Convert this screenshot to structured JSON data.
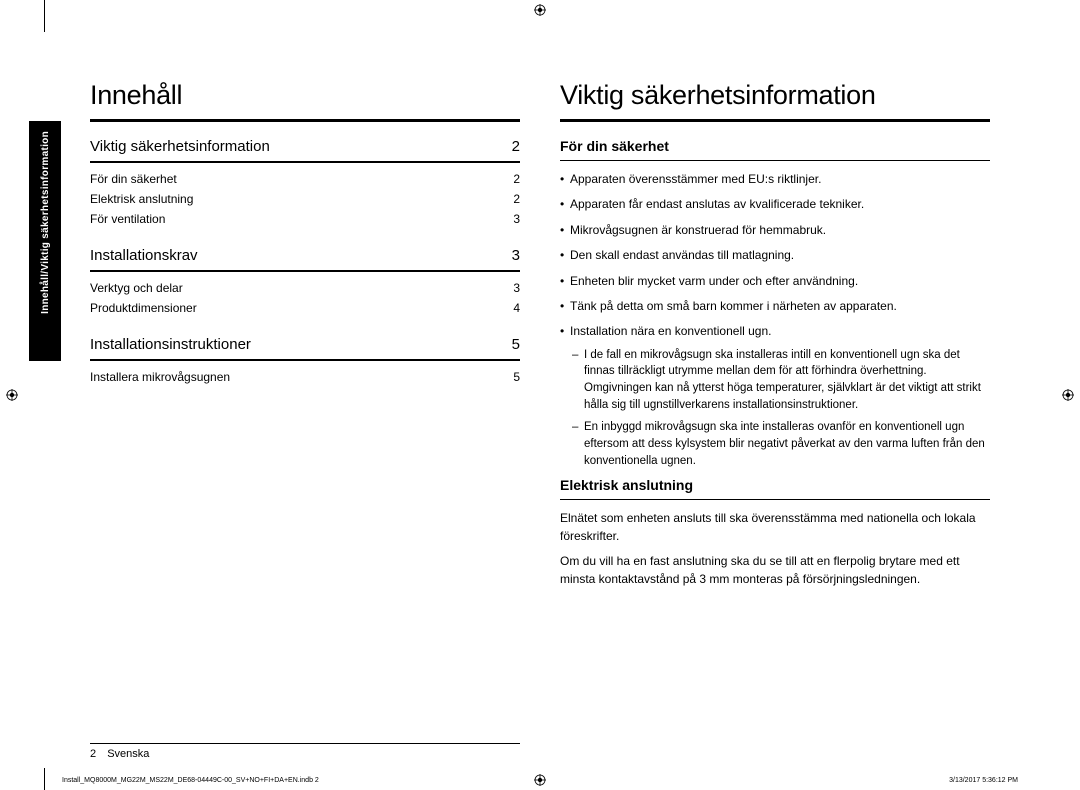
{
  "sideTab": "Innehåll/Viktig säkerhetsinformation",
  "leftColumn": {
    "title": "Innehåll",
    "sections": [
      {
        "heading": "Viktig säkerhetsinformation",
        "page": "2",
        "items": [
          {
            "label": "För din säkerhet",
            "page": "2"
          },
          {
            "label": "Elektrisk anslutning",
            "page": "2"
          },
          {
            "label": "För ventilation",
            "page": "3"
          }
        ]
      },
      {
        "heading": "Installationskrav",
        "page": "3",
        "items": [
          {
            "label": "Verktyg och delar",
            "page": "3"
          },
          {
            "label": "Produktdimensioner",
            "page": "4"
          }
        ]
      },
      {
        "heading": "Installationsinstruktioner",
        "page": "5",
        "items": [
          {
            "label": "Installera mikrovågsugnen",
            "page": "5"
          }
        ]
      }
    ]
  },
  "rightColumn": {
    "title": "Viktig säkerhetsinformation",
    "subsections": [
      {
        "heading": "För din säkerhet",
        "bullets": [
          {
            "text": "Apparaten överensstämmer med EU:s riktlinjer."
          },
          {
            "text": "Apparaten får endast anslutas av kvalificerade tekniker."
          },
          {
            "text": "Mikrovågsugnen är konstruerad för hemmabruk."
          },
          {
            "text": "Den skall endast användas till matlagning."
          },
          {
            "text": "Enheten blir mycket varm under och efter användning."
          },
          {
            "text": "Tänk på detta om små barn kommer i närheten av apparaten."
          },
          {
            "text": "Installation nära en konventionell ugn.",
            "sub": [
              "I de fall en mikrovågsugn ska installeras intill en konventionell ugn ska det finnas tillräckligt utrymme mellan dem för att förhindra överhettning. Omgivningen kan nå ytterst höga temperaturer, självklart är det viktigt att strikt hålla sig till ugnstillverkarens installationsinstruktioner.",
              "En inbyggd mikrovågsugn ska inte installeras ovanför en konventionell ugn eftersom att dess kylsystem blir negativt påverkat av den varma luften från den konventionella ugnen."
            ]
          }
        ]
      },
      {
        "heading": "Elektrisk anslutning",
        "paragraphs": [
          "Elnätet som enheten ansluts till ska överensstämma med nationella och lokala föreskrifter.",
          "Om du vill ha en fast anslutning ska du se till att en flerpolig brytare med ett minsta kontaktavstånd på 3 mm monteras på försörjningsledningen."
        ]
      }
    ]
  },
  "footer": {
    "pageNumber": "2",
    "language": "Svenska",
    "fileLeft": "Install_MQ8000M_MG22M_MS22M_DE68-04449C-00_SV+NO+FI+DA+EN.indb   2",
    "fileRight": "3/13/2017   5:36:12 PM"
  },
  "style": {
    "pageWidth": 1080,
    "pageHeight": 790,
    "background": "#ffffff",
    "textColor": "#000000",
    "sideTabBg": "#000000",
    "sideTabFg": "#ffffff",
    "h1FontSize": 27,
    "tocHeadFontSize": 15,
    "tocRowFontSize": 12,
    "bodyFontSize": 12,
    "tinyFontSize": 7
  }
}
